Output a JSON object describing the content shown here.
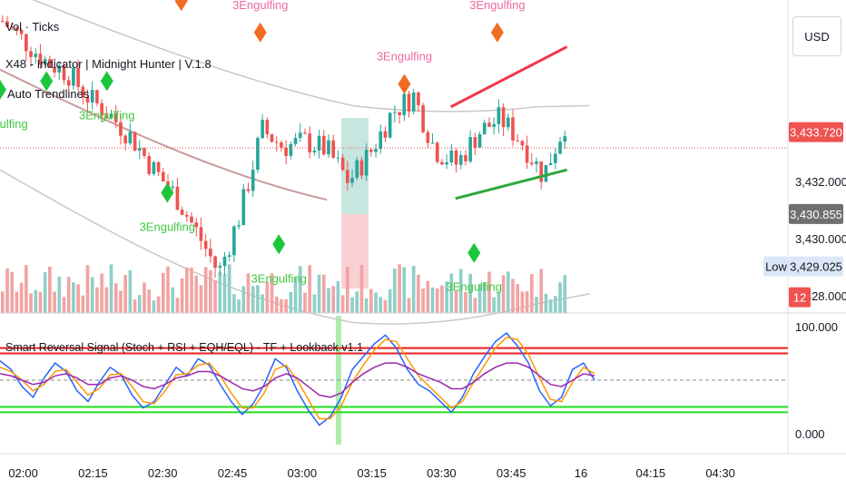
{
  "currency_button": "USD",
  "legend": {
    "line1": "Vol · Ticks",
    "line2": "X48 - Indicator | Midnight Hunter | V.1.8",
    "line3": "Auto Trendlines"
  },
  "pattern_label": "3Engulfing",
  "price_tags": {
    "current": "3,433.720",
    "mid": "3,430.855",
    "low_label": "Low",
    "low_value": "3,429.025",
    "partial_label": "12"
  },
  "colors": {
    "up": "#26a69a",
    "down": "#ef5350",
    "up_volume": "#8fcfc8",
    "down_volume": "#f2a3a3",
    "bull_marker": "#1cc63a",
    "bear_marker": "#f26b22",
    "pattern_text_bull": "#3fc83f",
    "pattern_text_bear": "#ec6aa2",
    "trend_up": "#f23645",
    "trend_low": "#2fa83a",
    "ma_line": "#c89a9a",
    "envelope": "#c8c8c8",
    "stoch_k": "#2962ff",
    "stoch_d": "#ff9800",
    "rsi": "#9c27b0",
    "ob": "#e91e1e",
    "os": "#22dd22"
  },
  "chart_data": [
    {
      "type": "candlestick",
      "title": "",
      "x_tick_labels": [
        "02:00",
        "02:15",
        "02:30",
        "02:45",
        "03:00",
        "03:15",
        "03:30",
        "03:45",
        "16",
        "04:15",
        "04:30"
      ],
      "y_tick_labels": [
        "3,432.000",
        "3,430.000",
        "3,428.000"
      ],
      "y_range": [
        3427.4,
        3437.7
      ],
      "close_series": [
        3437.6,
        3436.9,
        3436.2,
        3435.8,
        3434.9,
        3434.3,
        3433.5,
        3432.4,
        3431.5,
        3430.2,
        3428.8,
        3430.9,
        3433.8,
        3433.2,
        3433.4,
        3433.1,
        3432.0,
        3433.0,
        3434.4,
        3435.0,
        3433.1,
        3432.6,
        3433.7,
        3434.2,
        3433.4,
        3432.2,
        3434.0
      ],
      "markers": [
        {
          "kind": "bull",
          "time": "01:55",
          "price": 3435.2,
          "label": "3Engulfing"
        },
        {
          "kind": "bull",
          "time": "02:05",
          "price": 3435.5
        },
        {
          "kind": "bull",
          "time": "02:18",
          "price": 3435.5,
          "label": "3Engulfing"
        },
        {
          "kind": "bull",
          "time": "02:31",
          "price": 3431.6,
          "label": "3Engulfing"
        },
        {
          "kind": "bear",
          "time": "02:34",
          "price": 3438.3,
          "label": ""
        },
        {
          "kind": "bear",
          "time": "02:51",
          "price": 3437.2,
          "label": "3Engulfing"
        },
        {
          "kind": "bull",
          "time": "02:55",
          "price": 3429.8,
          "label": "3Engulfing"
        },
        {
          "kind": "bear",
          "time": "03:22",
          "price": 3435.4,
          "label": "3Engulfing"
        },
        {
          "kind": "bull",
          "time": "03:37",
          "price": 3429.5,
          "label": "3Engulfing"
        },
        {
          "kind": "bear",
          "time": "03:42",
          "price": 3437.2,
          "label": "3Engulfing"
        }
      ],
      "trendlines": [
        {
          "name": "upper",
          "from": [
            "03:32",
            3434.6
          ],
          "to": [
            "03:57",
            3436.7
          ]
        },
        {
          "name": "lower",
          "from": [
            "03:33",
            3431.4
          ],
          "to": [
            "03:57",
            3432.4
          ]
        }
      ],
      "volume_visible": true
    },
    {
      "type": "line",
      "title": "Smart Reversal Signal (Stoch + RSI + EQH/EQL) - TF + Lookback v1.1",
      "y_tick_labels": [
        "100.000",
        "0.000"
      ],
      "y_range": [
        0,
        100
      ],
      "levels": [
        80,
        75,
        50,
        25,
        20
      ],
      "series": [
        {
          "values": [
            68,
            60,
            44,
            34,
            52,
            66,
            58,
            40,
            30,
            48,
            62,
            55,
            36,
            24,
            30,
            46,
            62,
            54,
            70,
            64,
            46,
            30,
            18,
            28,
            46,
            70,
            62,
            40,
            22,
            8,
            16,
            34,
            60,
            72,
            84,
            92,
            80,
            60,
            46,
            40,
            30,
            20,
            34,
            56,
            72,
            86,
            94,
            82,
            66,
            40,
            26,
            34,
            60,
            66,
            50
          ]
        },
        {
          "values": [
            62,
            58,
            50,
            40,
            46,
            58,
            60,
            48,
            36,
            42,
            55,
            56,
            44,
            30,
            28,
            40,
            55,
            56,
            64,
            66,
            54,
            38,
            24,
            24,
            38,
            60,
            64,
            50,
            32,
            14,
            14,
            26,
            48,
            64,
            78,
            88,
            86,
            70,
            54,
            44,
            34,
            24,
            30,
            48,
            64,
            80,
            90,
            88,
            74,
            52,
            32,
            30,
            48,
            62,
            56
          ]
        },
        {
          "values": [
            56,
            54,
            50,
            46,
            48,
            54,
            56,
            52,
            46,
            46,
            52,
            54,
            50,
            44,
            42,
            46,
            52,
            54,
            58,
            58,
            54,
            48,
            42,
            40,
            44,
            52,
            56,
            52,
            44,
            36,
            34,
            38,
            48,
            56,
            62,
            66,
            66,
            62,
            56,
            52,
            48,
            42,
            42,
            48,
            56,
            62,
            66,
            66,
            62,
            54,
            46,
            44,
            50,
            56,
            54
          ]
        }
      ]
    }
  ]
}
